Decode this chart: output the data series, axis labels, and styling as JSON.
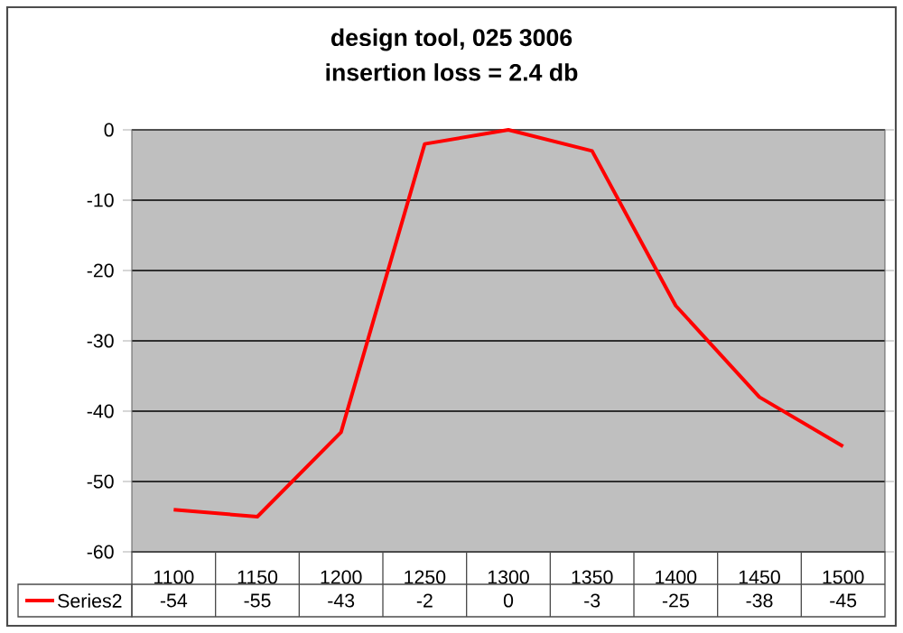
{
  "chart_data": {
    "type": "line",
    "title": "design tool, 025 3006",
    "subtitle": "insertion loss = 2.4 db",
    "categories": [
      "1100",
      "1150",
      "1200",
      "1250",
      "1300",
      "1350",
      "1400",
      "1450",
      "1500"
    ],
    "series": [
      {
        "name": "Series2",
        "color": "#ff0000",
        "values": [
          -54,
          -55,
          -43,
          -2,
          0,
          -3,
          -25,
          -38,
          -45
        ],
        "value_labels": [
          "-54",
          "-55",
          "-43",
          "-2",
          "0",
          "-3",
          "-25",
          "-38",
          "-45"
        ]
      }
    ],
    "ylim": [
      -60,
      0
    ],
    "yticks": [
      -60,
      -50,
      -40,
      -30,
      -20,
      -10,
      0
    ],
    "grid": "y",
    "legend": "bottom",
    "marker": "none",
    "line_style": "solid"
  }
}
